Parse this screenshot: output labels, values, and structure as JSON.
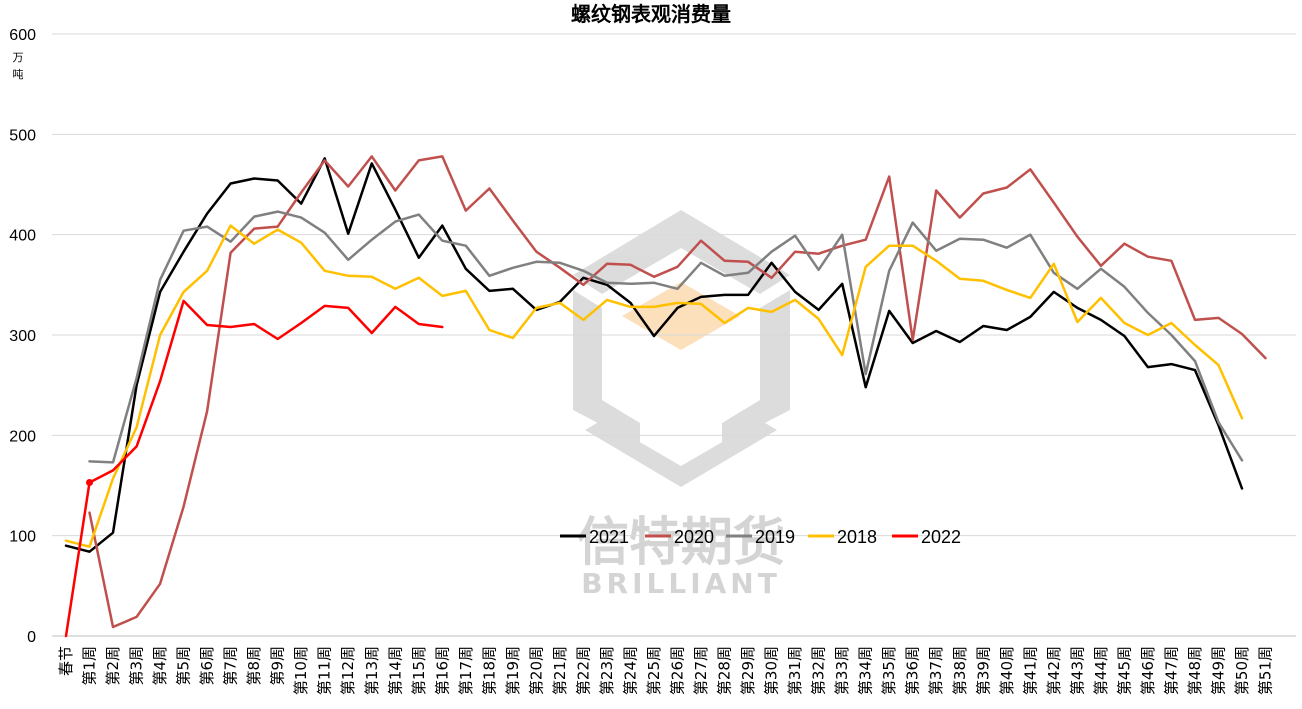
{
  "chart_data": {
    "type": "line",
    "title": "螺纹钢表观消费量",
    "ylabel_unit": [
      "万",
      "吨"
    ],
    "ylim": [
      0,
      600
    ],
    "yticks": [
      0,
      100,
      200,
      300,
      400,
      500,
      600
    ],
    "grid": true,
    "legend_position": "bottom-center (inside plot)",
    "watermark": {
      "text": "信特期货",
      "subtext": "BRILLIANT"
    },
    "categories": [
      "春节",
      "第1周",
      "第2周",
      "第3周",
      "第4周",
      "第5周",
      "第6周",
      "第7周",
      "第8周",
      "第9周",
      "第10周",
      "第11周",
      "第12周",
      "第13周",
      "第14周",
      "第15周",
      "第16周",
      "第17周",
      "第18周",
      "第19周",
      "第20周",
      "第21周",
      "第22周",
      "第23周",
      "第24周",
      "第25周",
      "第26周",
      "第27周",
      "第28周",
      "第29周",
      "第30周",
      "第31周",
      "第32周",
      "第33周",
      "第34周",
      "第35周",
      "第36周",
      "第37周",
      "第38周",
      "第39周",
      "第40周",
      "第41周",
      "第42周",
      "第43周",
      "第44周",
      "第45周",
      "第46周",
      "第47周",
      "第48周",
      "第49周",
      "第50周",
      "第51周"
    ],
    "series": [
      {
        "name": "2021",
        "color": "#000000",
        "values": [
          90,
          84,
          103,
          250,
          343,
          383,
          421,
          451,
          456,
          454,
          431,
          476,
          401,
          471,
          425,
          377,
          409,
          366,
          344,
          346,
          325,
          333,
          357,
          350,
          332,
          299,
          327,
          338,
          340,
          340,
          372,
          343,
          325,
          351,
          248,
          324,
          292,
          304,
          293,
          309,
          305,
          318,
          343,
          327,
          315,
          299,
          268,
          271,
          265,
          210,
          147,
          null
        ]
      },
      {
        "name": "2020",
        "color": "#c0504d",
        "values": [
          null,
          123,
          9,
          19,
          52,
          129,
          224,
          382,
          406,
          408,
          442,
          474,
          448,
          478,
          444,
          474,
          478,
          424,
          446,
          414,
          383,
          367,
          350,
          371,
          370,
          358,
          368,
          394,
          374,
          373,
          357,
          383,
          381,
          389,
          395,
          458,
          295,
          444,
          417,
          441,
          447,
          465,
          432,
          398,
          369,
          391,
          378,
          374,
          315,
          317,
          301,
          277
        ]
      },
      {
        "name": "2019",
        "color": "#808080",
        "values": [
          null,
          174,
          173,
          257,
          355,
          404,
          408,
          393,
          418,
          423,
          417,
          402,
          375,
          395,
          413,
          420,
          394,
          389,
          359,
          367,
          373,
          372,
          364,
          352,
          351,
          352,
          346,
          372,
          359,
          362,
          383,
          399,
          365,
          400,
          261,
          364,
          412,
          384,
          396,
          395,
          387,
          400,
          362,
          346,
          366,
          348,
          322,
          300,
          274,
          213,
          175,
          null
        ]
      },
      {
        "name": "2018",
        "color": "#ffc000",
        "values": [
          95,
          89,
          157,
          208,
          300,
          343,
          364,
          409,
          391,
          405,
          392,
          364,
          359,
          358,
          346,
          357,
          339,
          344,
          305,
          297,
          327,
          332,
          315,
          335,
          328,
          328,
          332,
          331,
          312,
          327,
          323,
          335,
          316,
          280,
          368,
          389,
          389,
          374,
          356,
          354,
          345,
          337,
          371,
          313,
          337,
          312,
          300,
          312,
          290,
          270,
          217,
          null
        ]
      },
      {
        "name": "2022",
        "color": "#ff0000",
        "values": [
          0,
          153,
          165,
          189,
          254,
          334,
          310,
          308,
          311,
          296,
          312,
          329,
          327,
          302,
          328,
          311,
          308,
          null,
          null,
          null,
          null,
          null,
          null,
          null,
          null,
          null,
          null,
          null,
          null,
          null,
          null,
          null,
          null,
          null,
          null,
          null,
          null,
          null,
          null,
          null,
          null,
          null,
          null,
          null,
          null,
          null,
          null,
          null,
          null,
          null,
          null,
          null
        ]
      }
    ]
  }
}
